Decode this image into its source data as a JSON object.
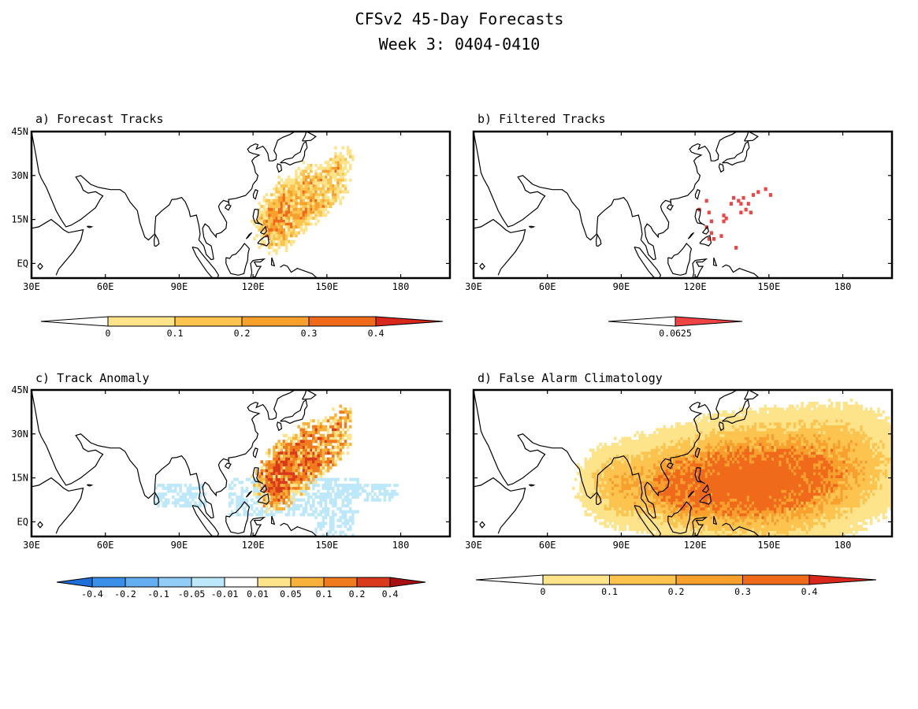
{
  "title": {
    "line1": "CFSv2 45-Day Forecasts",
    "line2": "Week 3: 0404-0410"
  },
  "axes": {
    "lon_labels": [
      "30E",
      "60E",
      "90E",
      "120E",
      "150E",
      "180"
    ],
    "lat_labels": [
      "45N",
      "30N",
      "15N",
      "EQ"
    ],
    "lon_values": [
      30,
      60,
      90,
      120,
      150,
      180
    ],
    "lat_values": [
      45,
      30,
      15,
      0
    ],
    "lon_range": [
      30,
      200
    ],
    "lat_range": [
      -5,
      45
    ]
  },
  "colors": {
    "frame": "#000000",
    "coast": "#000000"
  },
  "panels": [
    {
      "id": "a",
      "title": "a) Forecast Tracks",
      "colorbar": {
        "labels": [
          "0",
          "0.1",
          "0.2",
          "0.3",
          "0.4"
        ],
        "colors": [
          "#ffffff",
          "#fde48a",
          "#fcc44f",
          "#f8a02e",
          "#f06a1b",
          "#d8281b"
        ]
      },
      "field": {
        "type": "forecast",
        "tracks": [
          {
            "lon": [
              125,
              130,
              136,
              142,
              148,
              153,
              157
            ],
            "lat": [
              8,
              13,
              18,
              23,
              28,
              32,
              36
            ]
          },
          {
            "lon": [
              124,
              128,
              132,
              137,
              141,
              144
            ],
            "lat": [
              11,
              16,
              20,
              24,
              28,
              31
            ]
          },
          {
            "lon": [
              126,
              131,
              137,
              143,
              149
            ],
            "lat": [
              9,
              13,
              16,
              19,
              22
            ]
          },
          {
            "lon": [
              123,
              127,
              131,
              134
            ],
            "lat": [
              13,
              18,
              22,
              26
            ]
          },
          {
            "lon": [
              128,
              133,
              139,
              145,
              151,
              156
            ],
            "lat": [
              6,
              10,
              14,
              19,
              23,
              27
            ]
          }
        ]
      }
    },
    {
      "id": "b",
      "title": "b) Filtered Tracks",
      "colorbar": {
        "labels": [
          "0.0625"
        ],
        "colors": [
          "#ffffff",
          "#ef4444"
        ]
      },
      "field": {
        "type": "points",
        "points": [
          {
            "lon": 121,
            "lat": 19
          },
          {
            "lon": 124,
            "lat": 22
          },
          {
            "lon": 125,
            "lat": 18
          },
          {
            "lon": 126,
            "lat": 15
          },
          {
            "lon": 124,
            "lat": 13
          },
          {
            "lon": 126,
            "lat": 11
          },
          {
            "lon": 125,
            "lat": 9
          },
          {
            "lon": 127,
            "lat": 9
          },
          {
            "lon": 131,
            "lat": 17
          },
          {
            "lon": 132,
            "lat": 16
          },
          {
            "lon": 131,
            "lat": 15
          },
          {
            "lon": 134,
            "lat": 21
          },
          {
            "lon": 135,
            "lat": 23
          },
          {
            "lon": 137,
            "lat": 22
          },
          {
            "lon": 139,
            "lat": 23
          },
          {
            "lon": 138,
            "lat": 21
          },
          {
            "lon": 140,
            "lat": 19
          },
          {
            "lon": 141,
            "lat": 21
          },
          {
            "lon": 143,
            "lat": 24
          },
          {
            "lon": 142,
            "lat": 18
          },
          {
            "lon": 145,
            "lat": 25
          },
          {
            "lon": 148,
            "lat": 26
          },
          {
            "lon": 150,
            "lat": 24
          },
          {
            "lon": 136,
            "lat": 6
          },
          {
            "lon": 130,
            "lat": 10
          },
          {
            "lon": 138,
            "lat": 18
          }
        ]
      }
    },
    {
      "id": "c",
      "title": "c) Track Anomaly",
      "colorbar": {
        "labels": [
          "-0.4",
          "-0.2",
          "-0.1",
          "-0.05",
          "-0.01",
          "0.01",
          "0.05",
          "0.1",
          "0.2",
          "0.4"
        ],
        "colors": [
          "#1e6fd9",
          "#3a8fe8",
          "#66aef2",
          "#92cdf7",
          "#bde8fa",
          "#ffffff",
          "#fde48a",
          "#f8b23c",
          "#f07a1e",
          "#d83a1b",
          "#a60f14"
        ]
      },
      "field": {
        "type": "anomaly",
        "tracks": [
          {
            "lon": [
              125,
              130,
              136,
              142,
              148,
              153,
              157
            ],
            "lat": [
              8,
              13,
              18,
              23,
              28,
              32,
              36
            ]
          },
          {
            "lon": [
              124,
              128,
              132,
              137,
              141,
              144
            ],
            "lat": [
              11,
              16,
              20,
              24,
              28,
              31
            ]
          },
          {
            "lon": [
              126,
              131,
              137,
              143,
              149
            ],
            "lat": [
              9,
              13,
              16,
              19,
              22
            ]
          },
          {
            "lon": [
              123,
              127,
              131,
              134
            ],
            "lat": [
              13,
              18,
              22,
              26
            ]
          },
          {
            "lon": [
              128,
              133,
              139,
              145,
              151,
              156
            ],
            "lat": [
              6,
              10,
              14,
              19,
              23,
              27
            ]
          }
        ],
        "negative_regions": [
          {
            "lon": [
              110,
              162
            ],
            "lat": [
              2,
              14
            ]
          },
          {
            "lon": [
              148,
              178
            ],
            "lat": [
              7,
              12
            ]
          },
          {
            "lon": [
              80,
              100
            ],
            "lat": [
              5,
              12
            ]
          },
          {
            "lon": [
              145,
              160
            ],
            "lat": [
              -5,
              3
            ]
          }
        ]
      }
    },
    {
      "id": "d",
      "title": "d) False Alarm Climatology",
      "colorbar": {
        "labels": [
          "0",
          "0.1",
          "0.2",
          "0.3",
          "0.4"
        ],
        "colors": [
          "#ffffff",
          "#fde48a",
          "#fcc44f",
          "#f8a02e",
          "#f06a1b",
          "#d8281b"
        ]
      },
      "field": {
        "type": "climatology",
        "centers": [
          {
            "lon": 135,
            "lat": 13,
            "dlon": 35,
            "dlat": 13,
            "amp": 0.34
          },
          {
            "lon": 152,
            "lat": 14,
            "dlon": 30,
            "dlat": 16,
            "amp": 0.2
          },
          {
            "lon": 88,
            "lat": 12,
            "dlon": 12,
            "dlat": 10,
            "amp": 0.13
          },
          {
            "lon": 112,
            "lat": 10,
            "dlon": 12,
            "dlat": 9,
            "amp": 0.12
          },
          {
            "lon": 180,
            "lat": 22,
            "dlon": 22,
            "dlat": 14,
            "amp": 0.12
          }
        ]
      }
    }
  ]
}
